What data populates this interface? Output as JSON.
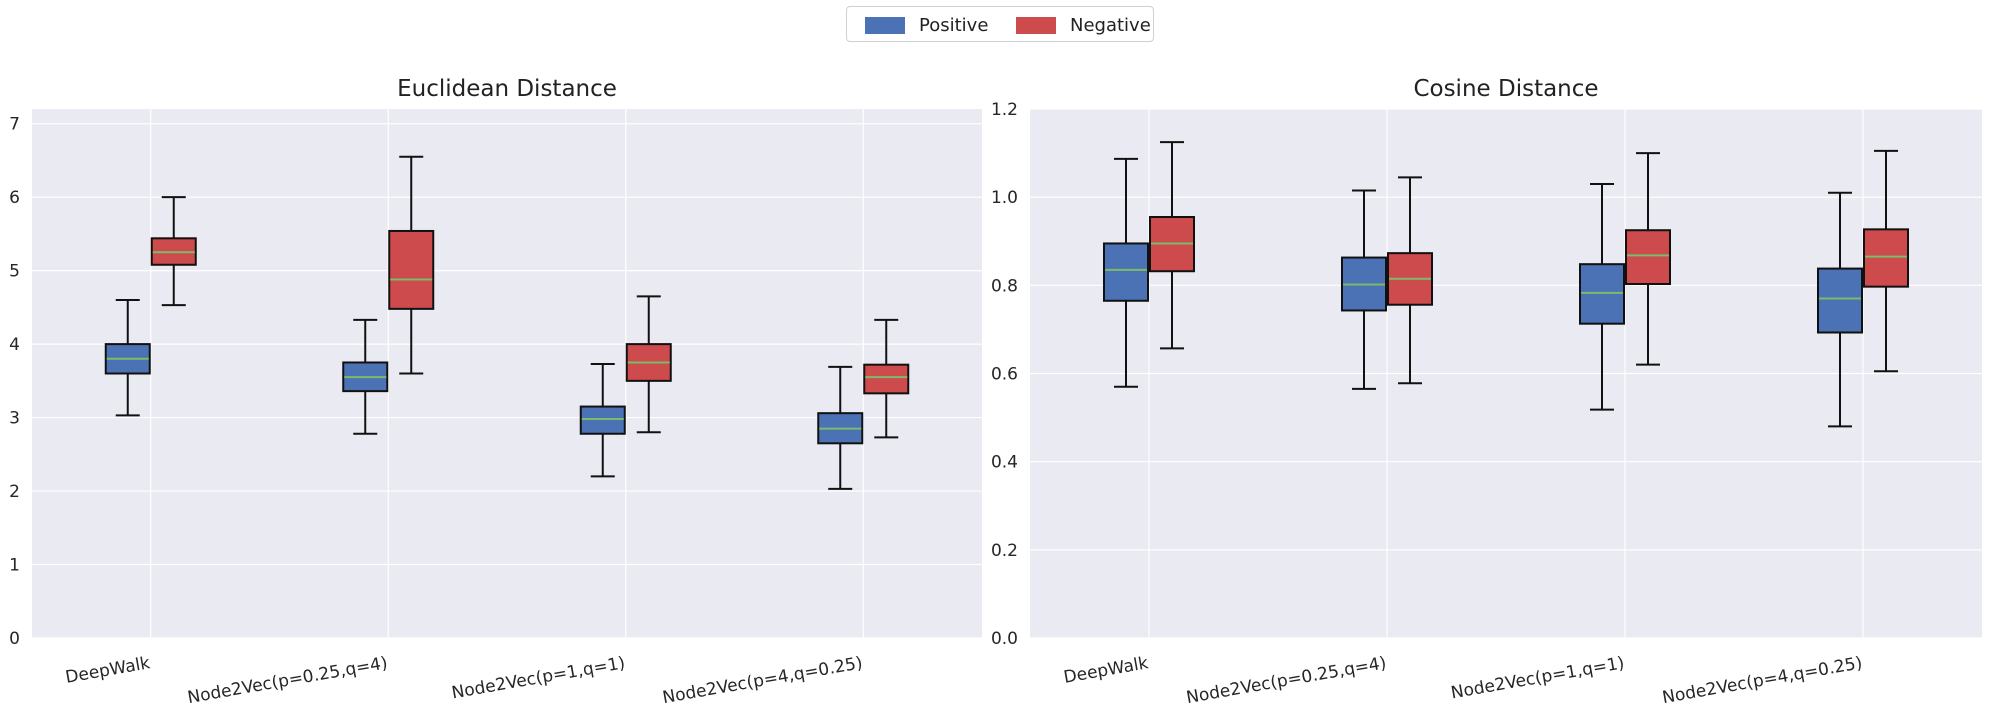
{
  "legend": {
    "position": "top-center",
    "entries": [
      {
        "label": "Positive",
        "color": "#4a72b5"
      },
      {
        "label": "Negative",
        "color": "#cd4a4d"
      }
    ]
  },
  "chart_data": [
    {
      "type": "box",
      "title": "Euclidean Distance",
      "xlabel": "",
      "ylabel": "",
      "categories": [
        "DeepWalk",
        "Node2Vec(p=0.25,q=4)",
        "Node2Vec(p=1,q=1)",
        "Node2Vec(p=4,q=0.25)"
      ],
      "ylim": [
        0,
        7.2
      ],
      "yticks": [
        "0",
        "1",
        "2",
        "3",
        "4",
        "5",
        "6",
        "7"
      ],
      "grid": true,
      "series": [
        {
          "name": "Positive",
          "color": "#4a72b5",
          "boxes": [
            {
              "whislo": 3.03,
              "q1": 3.6,
              "med": 3.8,
              "q3": 4.0,
              "whishi": 4.6
            },
            {
              "whislo": 2.78,
              "q1": 3.36,
              "med": 3.55,
              "q3": 3.75,
              "whishi": 4.33
            },
            {
              "whislo": 2.2,
              "q1": 2.78,
              "med": 2.98,
              "q3": 3.15,
              "whishi": 3.73
            },
            {
              "whislo": 2.03,
              "q1": 2.65,
              "med": 2.85,
              "q3": 3.06,
              "whishi": 3.69
            }
          ]
        },
        {
          "name": "Negative",
          "color": "#cd4a4d",
          "boxes": [
            {
              "whislo": 4.53,
              "q1": 5.08,
              "med": 5.25,
              "q3": 5.44,
              "whishi": 6.0
            },
            {
              "whislo": 3.6,
              "q1": 4.48,
              "med": 4.88,
              "q3": 5.54,
              "whishi": 6.55
            },
            {
              "whislo": 2.8,
              "q1": 3.5,
              "med": 3.75,
              "q3": 4.0,
              "whishi": 4.65
            },
            {
              "whislo": 2.73,
              "q1": 3.33,
              "med": 3.55,
              "q3": 3.72,
              "whishi": 4.33
            }
          ]
        }
      ]
    },
    {
      "type": "box",
      "title": "Cosine Distance",
      "xlabel": "",
      "ylabel": "",
      "categories": [
        "DeepWalk",
        "Node2Vec(p=0.25,q=4)",
        "Node2Vec(p=1,q=1)",
        "Node2Vec(p=4,q=0.25)"
      ],
      "ylim": [
        0,
        1.2
      ],
      "yticks": [
        "0.0",
        "0.2",
        "0.4",
        "0.6",
        "0.8",
        "1.0",
        "1.2"
      ],
      "grid": true,
      "series": [
        {
          "name": "Positive",
          "color": "#4a72b5",
          "boxes": [
            {
              "whislo": 0.57,
              "q1": 0.765,
              "med": 0.835,
              "q3": 0.895,
              "whishi": 1.087
            },
            {
              "whislo": 0.565,
              "q1": 0.743,
              "med": 0.802,
              "q3": 0.863,
              "whishi": 1.015
            },
            {
              "whislo": 0.518,
              "q1": 0.713,
              "med": 0.783,
              "q3": 0.848,
              "whishi": 1.03
            },
            {
              "whislo": 0.48,
              "q1": 0.693,
              "med": 0.77,
              "q3": 0.838,
              "whishi": 1.01
            }
          ]
        },
        {
          "name": "Negative",
          "color": "#cd4a4d",
          "boxes": [
            {
              "whislo": 0.657,
              "q1": 0.832,
              "med": 0.895,
              "q3": 0.955,
              "whishi": 1.125
            },
            {
              "whislo": 0.578,
              "q1": 0.756,
              "med": 0.815,
              "q3": 0.873,
              "whishi": 1.045
            },
            {
              "whislo": 0.62,
              "q1": 0.803,
              "med": 0.868,
              "q3": 0.925,
              "whishi": 1.1
            },
            {
              "whislo": 0.605,
              "q1": 0.797,
              "med": 0.865,
              "q3": 0.927,
              "whishi": 1.105
            }
          ]
        }
      ]
    }
  ]
}
